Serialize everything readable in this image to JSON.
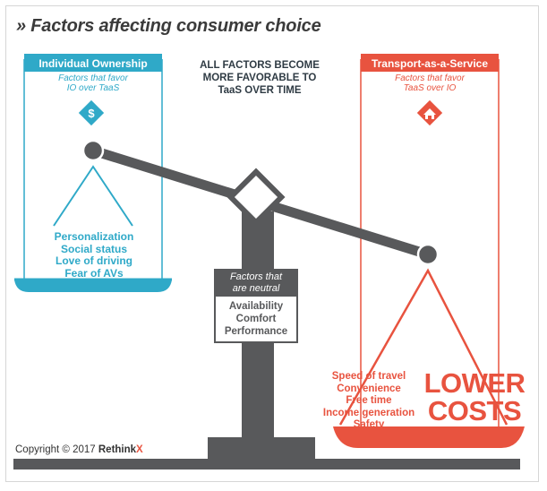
{
  "title": "» Factors affecting consumer choice",
  "center_note": {
    "line1": "ALL FACTORS BECOME",
    "line2": "MORE FAVORABLE TO",
    "line3": "TaaS OVER TIME"
  },
  "individual_ownership": {
    "heading": "Individual Ownership",
    "subtitle_line1": "Factors that favor",
    "subtitle_line2": "IO over TaaS",
    "factors": [
      "Personalization",
      "Social status",
      "Love of driving",
      "Fear of AVs"
    ],
    "color": "#2fa9c8",
    "icon": "dollar-icon"
  },
  "transport_as_a_service": {
    "heading": "Transport-as-a-Service",
    "subtitle_line1": "Factors that favor",
    "subtitle_line2": "TaaS over IO",
    "factors": [
      "Speed of travel",
      "Convenience",
      "Free time",
      "Income generation",
      "Safety"
    ],
    "emphasis_line1": "LOWER",
    "emphasis_line2": "COSTS",
    "color": "#e8533f",
    "icon": "house-icon"
  },
  "neutral": {
    "heading_line1": "Factors that",
    "heading_line2": "are neutral",
    "factors": [
      "Availability",
      "Comfort",
      "Performance"
    ],
    "color": "#58595b"
  },
  "copyright": {
    "prefix": "Copyright © 2017",
    "brand": "Rethink",
    "brand_mark": "X"
  }
}
